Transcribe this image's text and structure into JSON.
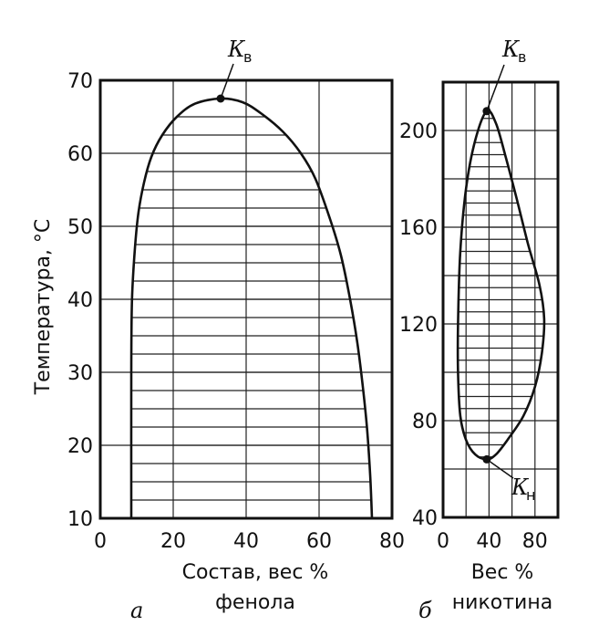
{
  "chart_data": [
    {
      "type": "line",
      "panel_letter": "а",
      "xlabel_line1": "Состав, вес %",
      "xlabel_line2": "фенола",
      "ylabel": "Температура, °С",
      "xlim": [
        0,
        80
      ],
      "ylim": [
        10,
        70
      ],
      "x_ticks": [
        0,
        20,
        40,
        60,
        80
      ],
      "y_ticks": [
        10,
        20,
        30,
        40,
        50,
        60,
        70
      ],
      "critical_point_label": "К",
      "critical_point_sub": "в",
      "critical_point": {
        "x": 33,
        "y": 67.5
      },
      "curve": [
        {
          "x": 8.5,
          "y": 10
        },
        {
          "x": 8.5,
          "y": 30
        },
        {
          "x": 8.7,
          "y": 40
        },
        {
          "x": 9.5,
          "y": 47
        },
        {
          "x": 10.5,
          "y": 52
        },
        {
          "x": 12,
          "y": 56
        },
        {
          "x": 14,
          "y": 59.5
        },
        {
          "x": 17,
          "y": 62.5
        },
        {
          "x": 21,
          "y": 65
        },
        {
          "x": 26,
          "y": 66.8
        },
        {
          "x": 33,
          "y": 67.5
        },
        {
          "x": 39,
          "y": 67
        },
        {
          "x": 44,
          "y": 65.5
        },
        {
          "x": 50,
          "y": 63
        },
        {
          "x": 55,
          "y": 60
        },
        {
          "x": 59,
          "y": 56.5
        },
        {
          "x": 63,
          "y": 51
        },
        {
          "x": 66,
          "y": 46
        },
        {
          "x": 68.5,
          "y": 40
        },
        {
          "x": 70.5,
          "y": 34
        },
        {
          "x": 72,
          "y": 28
        },
        {
          "x": 73.2,
          "y": 22
        },
        {
          "x": 74,
          "y": 16
        },
        {
          "x": 74.5,
          "y": 10
        }
      ]
    },
    {
      "type": "line",
      "panel_letter": "б",
      "xlabel_line1": "Вес %",
      "xlabel_line2": "никотина",
      "xlim": [
        0,
        100
      ],
      "ylim": [
        40,
        220
      ],
      "x_ticks": [
        0,
        40,
        80
      ],
      "y_ticks": [
        40,
        80,
        120,
        160,
        200
      ],
      "upper_point_label": "К",
      "upper_point_sub": "в",
      "lower_point_label": "К",
      "lower_point_sub": "н",
      "upper_point": {
        "x": 38,
        "y": 208
      },
      "lower_point": {
        "x": 38,
        "y": 64
      },
      "curve": [
        {
          "x": 38,
          "y": 208
        },
        {
          "x": 46,
          "y": 203
        },
        {
          "x": 54,
          "y": 190
        },
        {
          "x": 64,
          "y": 172
        },
        {
          "x": 74,
          "y": 153
        },
        {
          "x": 84,
          "y": 136
        },
        {
          "x": 88,
          "y": 122
        },
        {
          "x": 86,
          "y": 108
        },
        {
          "x": 80,
          "y": 94
        },
        {
          "x": 70,
          "y": 82
        },
        {
          "x": 56,
          "y": 72
        },
        {
          "x": 46,
          "y": 66
        },
        {
          "x": 38,
          "y": 64
        },
        {
          "x": 28,
          "y": 66
        },
        {
          "x": 20,
          "y": 72
        },
        {
          "x": 15,
          "y": 82
        },
        {
          "x": 13,
          "y": 100
        },
        {
          "x": 13,
          "y": 120
        },
        {
          "x": 15,
          "y": 150
        },
        {
          "x": 20,
          "y": 176
        },
        {
          "x": 28,
          "y": 196
        },
        {
          "x": 38,
          "y": 208
        }
      ]
    }
  ]
}
